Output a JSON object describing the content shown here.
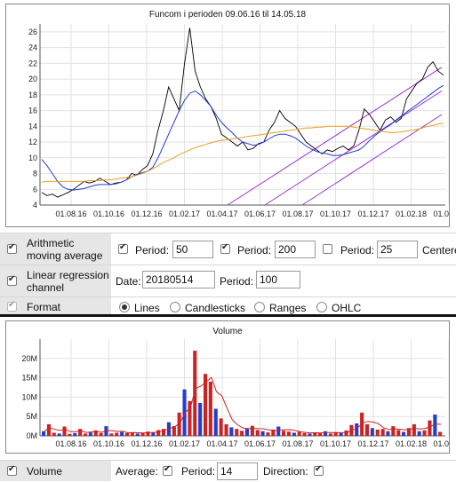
{
  "price_chart": {
    "title": "Funcom i perioden 09.06.16 til 14.05.18",
    "chart_data": {
      "type": "line",
      "title": "Funcom i perioden 09.06.16 til 14.05.18",
      "x_ticks": [
        "01.08.16",
        "01.10.16",
        "01.12.16",
        "01.02.17",
        "01.04.17",
        "01.06.17",
        "01.08.17",
        "01.10.17",
        "01.12.17",
        "01.02.18",
        "01.04.18"
      ],
      "y_ticks": [
        4,
        6,
        8,
        10,
        12,
        14,
        16,
        18,
        20,
        22,
        24,
        26
      ],
      "ylim": [
        4,
        27
      ],
      "series": [
        {
          "role": "price",
          "color": "#000000",
          "values": [
            5.6,
            5.2,
            5.4,
            5.0,
            5.3,
            5.6,
            6.0,
            6.5,
            7.0,
            6.8,
            7.0,
            7.4,
            7.0,
            6.6,
            6.8,
            6.9,
            7.2,
            8.0,
            7.8,
            8.5,
            9.0,
            10.5,
            13.5,
            16.0,
            19.0,
            17.5,
            16.0,
            22.0,
            26.5,
            21.0,
            19.0,
            17.5,
            16.5,
            15.0,
            13.0,
            12.5,
            12.0,
            11.5,
            12.0,
            11.0,
            11.2,
            11.8,
            12.0,
            13.5,
            14.5,
            16.0,
            15.0,
            14.5,
            14.0,
            13.0,
            12.0,
            11.5,
            11.0,
            10.5,
            11.0,
            10.8,
            11.2,
            11.5,
            11.0,
            11.5,
            13.5,
            16.2,
            15.5,
            14.5,
            13.5,
            14.8,
            15.2,
            14.5,
            15.0,
            17.5,
            18.5,
            19.5,
            20.0,
            21.5,
            22.2,
            21.0,
            20.5
          ]
        },
        {
          "role": "moving-average-50",
          "color": "#1f3fcf",
          "values": [
            9.8,
            9.0,
            8.0,
            7.0,
            6.3,
            6.0,
            5.9,
            6.0,
            6.1,
            6.3,
            6.5,
            6.6,
            6.6,
            6.6,
            6.7,
            6.9,
            7.2,
            7.6,
            7.9,
            8.1,
            8.3,
            8.8,
            10.0,
            11.5,
            13.0,
            14.5,
            16.0,
            17.3,
            18.2,
            18.5,
            18.0,
            17.3,
            16.5,
            15.4,
            14.5,
            13.8,
            13.2,
            12.5,
            12.0,
            11.8,
            11.6,
            11.7,
            12.0,
            12.4,
            12.8,
            13.0,
            13.0,
            12.8,
            12.5,
            12.0,
            11.5,
            11.1,
            10.8,
            10.6,
            10.5,
            10.3,
            10.3,
            10.4,
            10.6,
            10.8,
            11.0,
            11.5,
            12.2,
            12.8,
            13.3,
            13.8,
            14.2,
            14.8,
            15.3,
            15.8,
            16.3,
            16.8,
            17.3,
            17.8,
            18.3,
            18.8,
            19.2
          ]
        },
        {
          "role": "moving-average-200",
          "color": "#e8a020",
          "values": [
            6.9,
            7.0,
            7.0,
            7.0,
            7.0,
            7.0,
            7.0,
            7.0,
            7.0,
            7.1,
            7.1,
            7.1,
            7.2,
            7.2,
            7.3,
            7.4,
            7.5,
            7.6,
            7.8,
            8.0,
            8.3,
            8.6,
            9.0,
            9.4,
            9.7,
            10.0,
            10.4,
            10.7,
            11.0,
            11.3,
            11.5,
            11.7,
            11.9,
            12.1,
            12.2,
            12.3,
            12.4,
            12.5,
            12.6,
            12.7,
            12.8,
            12.9,
            13.0,
            13.1,
            13.2,
            13.3,
            13.4,
            13.5,
            13.6,
            13.7,
            13.8,
            13.8,
            13.9,
            13.9,
            14.0,
            14.0,
            14.0,
            14.0,
            14.0,
            13.9,
            13.8,
            13.7,
            13.6,
            13.5,
            13.4,
            13.3,
            13.2,
            13.2,
            13.3,
            13.4,
            13.5,
            13.6,
            13.8,
            14.0,
            14.1,
            14.3,
            14.4
          ]
        }
      ],
      "regression_channel": {
        "color": "#9b30d0"
      },
      "grid": true
    }
  },
  "settings": {
    "ma": {
      "label": "Arithmetic moving average",
      "checked": true,
      "p1": {
        "label": "Period:",
        "value": "50",
        "checked": true
      },
      "p2": {
        "label": "Period:",
        "value": "200",
        "checked": true
      },
      "p3": {
        "label": "Period:",
        "value": "25",
        "checked": false
      },
      "centered_label": "Centere"
    },
    "regression": {
      "label": "Linear regression channel",
      "checked": true,
      "date_label": "Date:",
      "date_value": "20180514",
      "period_label": "Period:",
      "period_value": "100"
    },
    "format": {
      "label": "Format",
      "checked": true,
      "options": [
        "Lines",
        "Candlesticks",
        "Ranges",
        "OHLC"
      ],
      "selected": "Lines"
    }
  },
  "volume_chart": {
    "title": "Volume",
    "chart_data": {
      "type": "bar",
      "title": "Volume",
      "x_ticks": [
        "01.08.16",
        "01.10.16",
        "01.12.16",
        "01.02.17",
        "01.04.17",
        "01.06.17",
        "01.08.17",
        "01.10.17",
        "01.12.17",
        "01.02.18",
        "01.04.18"
      ],
      "y_ticks": [
        "0M",
        "5M",
        "10M",
        "15M",
        "20M"
      ],
      "ylim": [
        0,
        25
      ],
      "values_millions": [
        1.2,
        3.0,
        0.8,
        0.6,
        2.4,
        0.5,
        0.7,
        1.8,
        0.6,
        0.9,
        1.4,
        0.7,
        2.5,
        0.6,
        0.8,
        1.0,
        0.7,
        0.9,
        0.6,
        0.8,
        1.1,
        0.9,
        1.5,
        1.8,
        3.5,
        2.5,
        6.0,
        12.0,
        9.0,
        22.0,
        8.5,
        16.0,
        14.0,
        7.0,
        4.5,
        3.0,
        2.2,
        1.8,
        1.3,
        2.0,
        2.6,
        1.5,
        1.2,
        0.9,
        1.6,
        2.4,
        1.3,
        1.1,
        0.8,
        1.0,
        0.7,
        0.6,
        0.9,
        0.8,
        1.2,
        0.6,
        0.8,
        0.7,
        1.4,
        2.8,
        3.2,
        6.0,
        3.0,
        2.0,
        1.6,
        1.8,
        1.2,
        2.5,
        1.5,
        1.0,
        2.0,
        3.0,
        1.2,
        1.4,
        4.0,
        5.5,
        1.0
      ],
      "average_color": "#cc2222",
      "up_color": "#1f3fcf",
      "down_color": "#cc2222",
      "grid": true
    }
  },
  "volume_settings": {
    "label": "Volume",
    "checked": true,
    "average_label": "Average:",
    "average_checked": true,
    "period_label": "Period:",
    "period_value": "14",
    "direction_label": "Direction:",
    "direction_checked": true
  }
}
